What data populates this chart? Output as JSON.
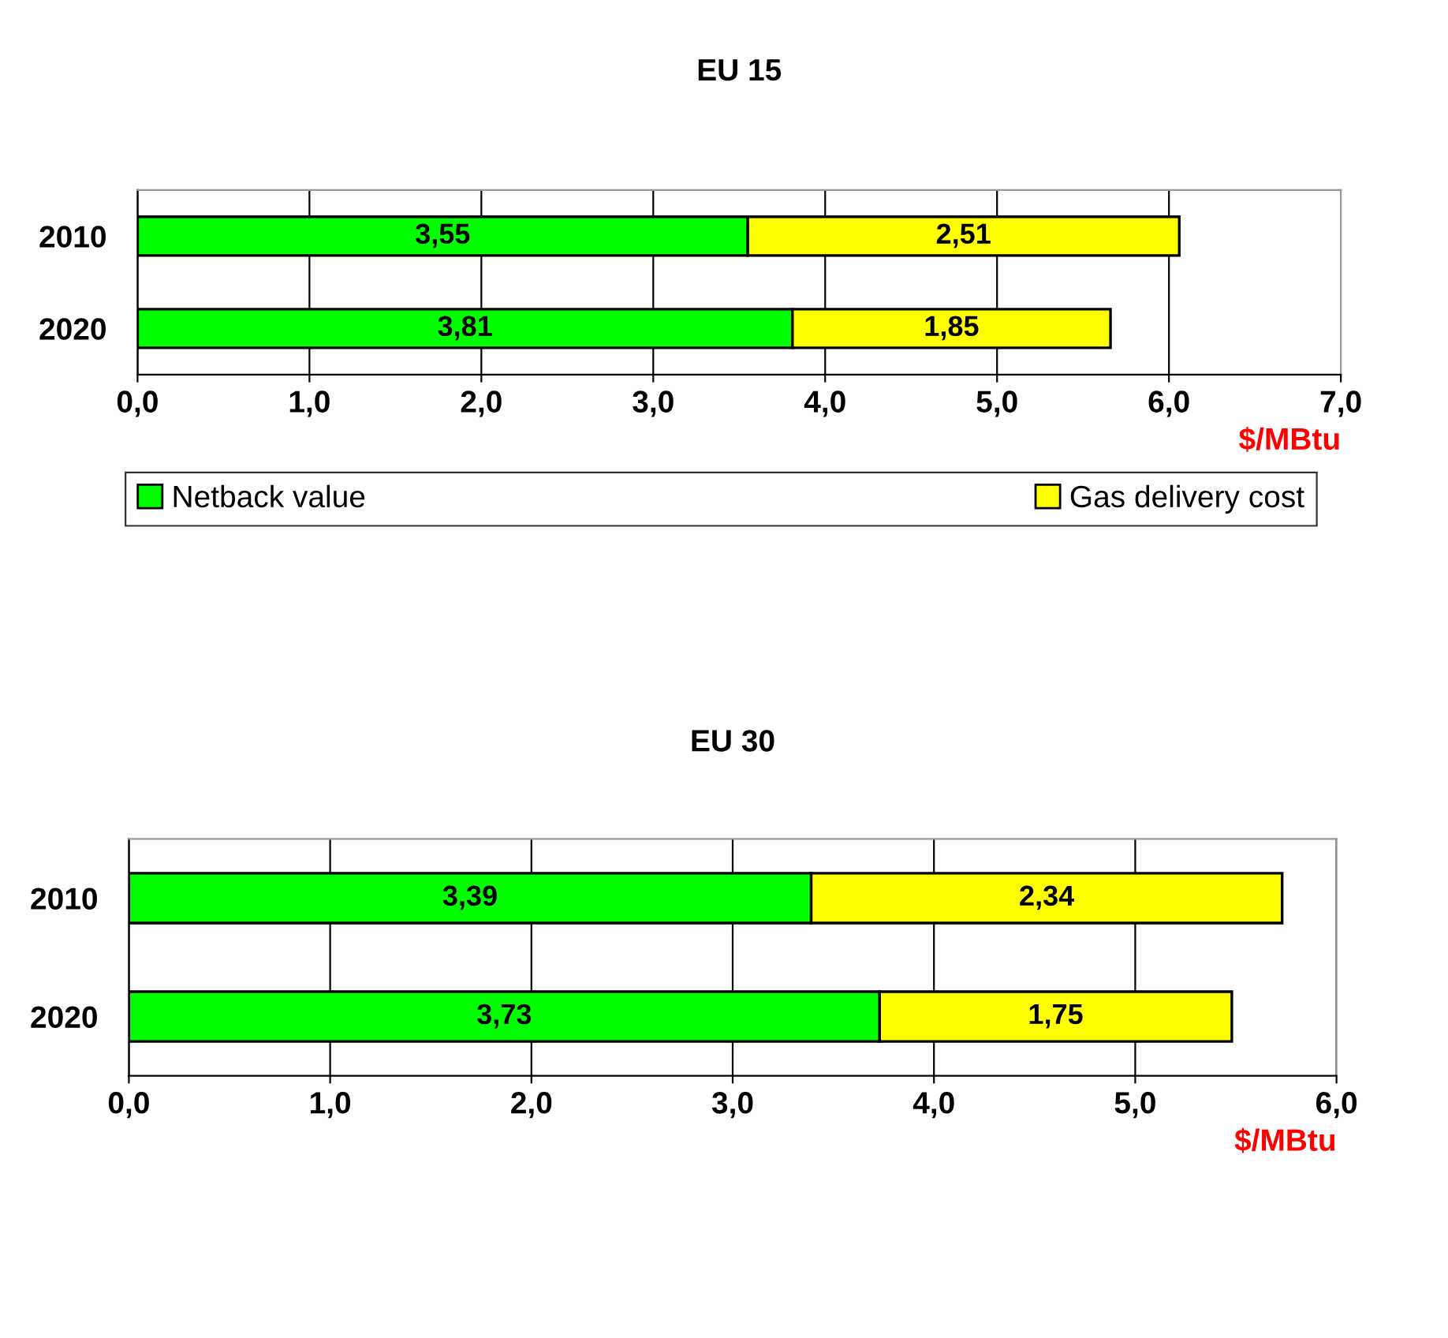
{
  "chart_data": [
    {
      "type": "bar",
      "orientation": "horizontal",
      "stacked": true,
      "title": "EU 15",
      "xlabel": "$/MBtu",
      "categories": [
        "2010",
        "2020"
      ],
      "series": [
        {
          "name": "Netback value",
          "color": "#00ff00",
          "values": [
            3.55,
            3.81
          ],
          "value_labels": [
            "3,55",
            "3,81"
          ]
        },
        {
          "name": "Gas delivery cost",
          "color": "#ffff00",
          "values": [
            2.51,
            1.85
          ],
          "value_labels": [
            "2,51",
            "1,85"
          ]
        }
      ],
      "xlim": [
        0,
        7
      ],
      "xticks": [
        {
          "value": 0,
          "label": "0,0"
        },
        {
          "value": 1,
          "label": "1,0"
        },
        {
          "value": 2,
          "label": "2,0"
        },
        {
          "value": 3,
          "label": "3,0"
        },
        {
          "value": 4,
          "label": "4,0"
        },
        {
          "value": 5,
          "label": "5,0"
        },
        {
          "value": 6,
          "label": "6,0"
        },
        {
          "value": 7,
          "label": "7,0"
        }
      ],
      "grid": "x",
      "legend": "bottom"
    },
    {
      "type": "bar",
      "orientation": "horizontal",
      "stacked": true,
      "title": "EU 30",
      "xlabel": "$/MBtu",
      "categories": [
        "2010",
        "2020"
      ],
      "series": [
        {
          "color": "#00ff00",
          "values": [
            3.39,
            3.73
          ],
          "value_labels": [
            "3,39",
            "3,73"
          ]
        },
        {
          "color": "#ffff00",
          "values": [
            2.34,
            1.75
          ],
          "value_labels": [
            "2,34",
            "1,75"
          ]
        }
      ],
      "xlim": [
        0,
        6
      ],
      "xticks": [
        {
          "value": 0,
          "label": "0,0"
        },
        {
          "value": 1,
          "label": "1,0"
        },
        {
          "value": 2,
          "label": "2,0"
        },
        {
          "value": 3,
          "label": "3,0"
        },
        {
          "value": 4,
          "label": "4,0"
        },
        {
          "value": 5,
          "label": "5,0"
        },
        {
          "value": 6,
          "label": "6,0"
        }
      ],
      "grid": "x"
    }
  ]
}
